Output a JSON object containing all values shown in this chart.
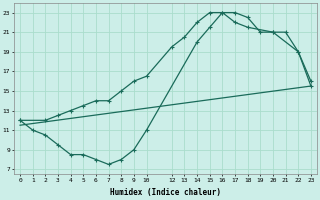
{
  "xlabel": "Humidex (Indice chaleur)",
  "background_color": "#cceee8",
  "grid_color": "#aaddcc",
  "line_color": "#1a6b5a",
  "xlim": [
    -0.5,
    23.5
  ],
  "ylim": [
    6.5,
    24.0
  ],
  "xticks": [
    0,
    1,
    2,
    3,
    4,
    5,
    6,
    7,
    8,
    9,
    10,
    12,
    13,
    14,
    15,
    16,
    17,
    18,
    19,
    20,
    21,
    22,
    23
  ],
  "yticks": [
    7,
    9,
    11,
    13,
    15,
    17,
    19,
    21,
    23
  ],
  "line1_x": [
    0,
    1,
    2,
    3,
    4,
    5,
    6,
    7,
    8,
    9,
    10,
    14,
    15,
    16,
    17,
    18,
    19,
    20,
    21,
    22,
    23
  ],
  "line1_y": [
    12,
    11,
    10.5,
    9.5,
    8.5,
    8.5,
    8.0,
    7.5,
    8.0,
    9.0,
    11.0,
    20,
    21.5,
    23,
    23,
    22.5,
    21,
    21,
    21,
    19,
    16
  ],
  "line2_x": [
    0,
    2,
    3,
    4,
    5,
    6,
    7,
    8,
    9,
    10,
    12,
    13,
    14,
    15,
    16,
    17,
    18,
    20,
    22,
    23
  ],
  "line2_y": [
    12,
    12,
    12.5,
    13,
    13.5,
    14,
    14.0,
    15,
    16,
    16.5,
    19.5,
    20.5,
    22,
    23,
    23,
    22,
    21.5,
    21,
    19,
    15.5
  ],
  "line3_x": [
    0,
    23
  ],
  "line3_y": [
    11.5,
    15.5
  ]
}
